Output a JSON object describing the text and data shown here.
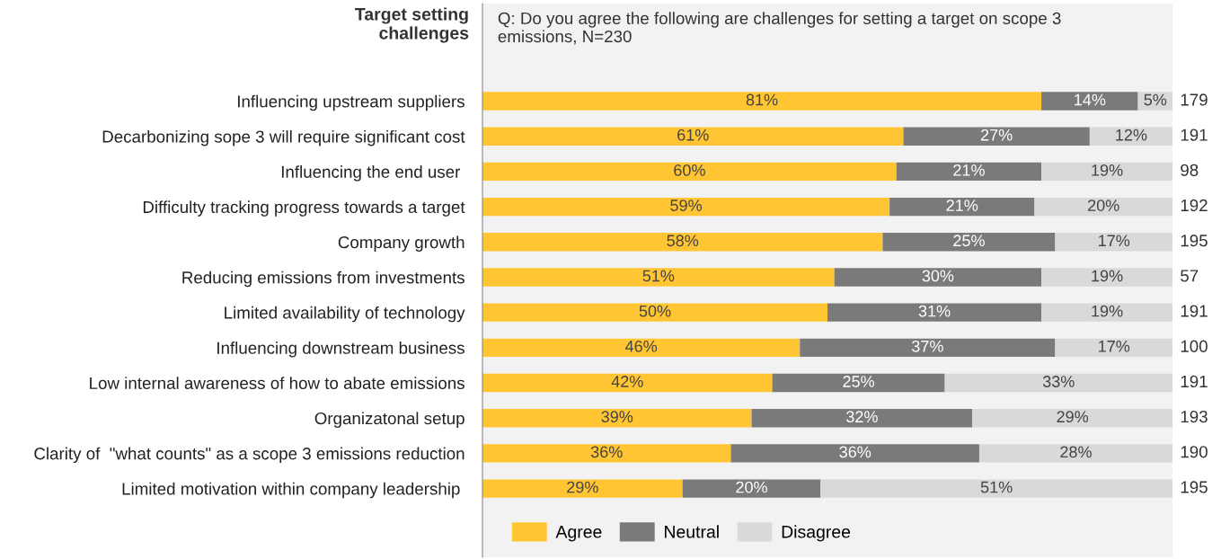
{
  "chart_data": {
    "type": "bar",
    "orientation": "horizontal",
    "stacked": true,
    "title": "Target setting\nchallenges",
    "subtitle": "Q: Do you agree the following are challenges for setting a target on scope 3\nemissions, N=230",
    "categories": [
      "Influencing upstream suppliers",
      "Decarbonizing sope 3 will require significant cost",
      "Influencing the end user ",
      "Difficulty tracking progress towards a target",
      "Company growth",
      "Reducing emissions from investments",
      "Limited availability of technology",
      "Influencing downstream business",
      "Low internal awareness of how to abate emissions",
      "Organizatonal setup",
      "Clarity of  \"what counts\" as a scope 3 emissions reduction",
      "Limited motivation within company leadership "
    ],
    "series": [
      {
        "name": "Agree",
        "color": "#ffc533",
        "values": [
          81,
          61,
          60,
          59,
          58,
          51,
          50,
          46,
          42,
          39,
          36,
          29
        ],
        "value_labels": [
          "81%",
          "61%",
          "60%",
          "59%",
          "58%",
          "51%",
          "50%",
          "46%",
          "42%",
          "39%",
          "36%",
          "29%"
        ]
      },
      {
        "name": "Neutral",
        "color": "#7a7a7a",
        "values": [
          14,
          27,
          21,
          21,
          25,
          30,
          31,
          37,
          25,
          32,
          36,
          20
        ],
        "value_labels": [
          "14%",
          "27%",
          "21%",
          "21%",
          "25%",
          "30%",
          "31%",
          "37%",
          "25%",
          "32%",
          "36%",
          "20%"
        ]
      },
      {
        "name": "Disagree",
        "color": "#d9d9d9",
        "values": [
          5,
          12,
          19,
          20,
          17,
          19,
          19,
          17,
          33,
          29,
          28,
          51
        ],
        "value_labels": [
          "5%",
          "12%",
          "19%",
          "20%",
          "17%",
          "19%",
          "19%",
          "17%",
          "33%",
          "29%",
          "28%",
          "51%"
        ]
      }
    ],
    "xlim": [
      0,
      100
    ],
    "tick_labels": "y",
    "legend": "bottom left",
    "grid": false,
    "annotations": [
      "179",
      "191",
      "98",
      "192",
      "195",
      "57",
      "191",
      "100",
      "191",
      "193",
      "190",
      "195"
    ]
  }
}
